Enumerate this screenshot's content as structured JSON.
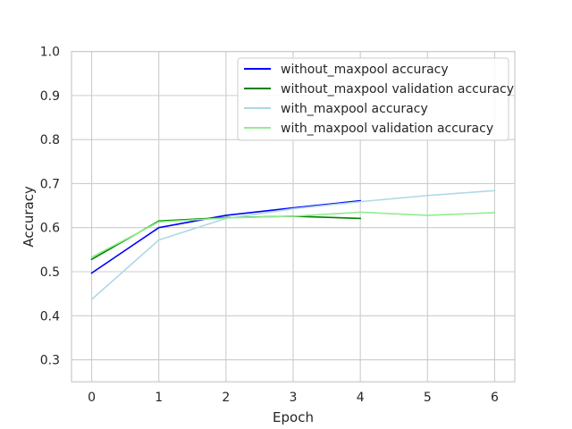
{
  "chart_data": {
    "type": "line",
    "title": "",
    "xlabel": "Epoch",
    "ylabel": "Accuracy",
    "xlim": [
      -0.3,
      6.3
    ],
    "ylim": [
      0.25,
      1.0
    ],
    "x_ticks": [
      0,
      1,
      2,
      3,
      4,
      5,
      6
    ],
    "y_ticks": [
      0.3,
      0.4,
      0.5,
      0.6,
      0.7,
      0.8,
      0.9,
      1.0
    ],
    "grid": true,
    "legend_position": "upper right",
    "series": [
      {
        "name": "without_maxpool accuracy",
        "color": "#0000ff",
        "x": [
          0,
          1,
          2,
          3,
          4
        ],
        "y": [
          0.497,
          0.6,
          0.628,
          0.645,
          0.661
        ]
      },
      {
        "name": "without_maxpool validation accuracy",
        "color": "#008000",
        "x": [
          0,
          1,
          2,
          3,
          4
        ],
        "y": [
          0.528,
          0.615,
          0.623,
          0.626,
          0.621
        ]
      },
      {
        "name": "with_maxpool accuracy",
        "color": "#add8e6",
        "x": [
          0,
          1,
          2,
          3,
          4,
          5,
          6
        ],
        "y": [
          0.437,
          0.572,
          0.621,
          0.643,
          0.659,
          0.673,
          0.684
        ]
      },
      {
        "name": "with_maxpool validation accuracy",
        "color": "#90ee90",
        "x": [
          0,
          1,
          2,
          3,
          4,
          5,
          6
        ],
        "y": [
          0.533,
          0.613,
          0.622,
          0.626,
          0.635,
          0.628,
          0.634
        ]
      }
    ]
  }
}
